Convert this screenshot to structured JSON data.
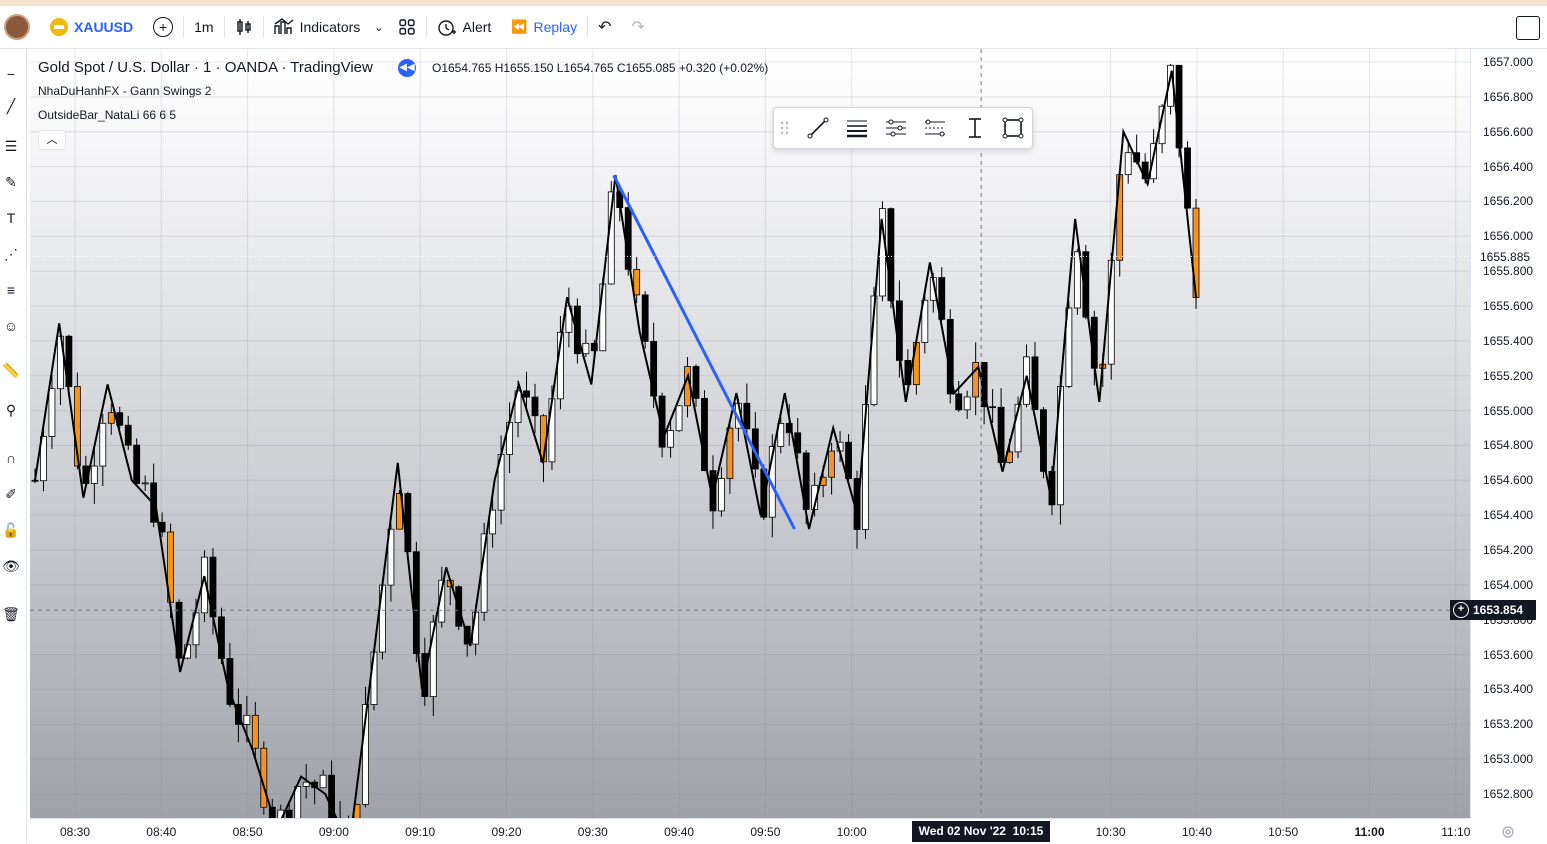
{
  "toolbar": {
    "symbol": "XAUUSD",
    "interval": "1m",
    "indicators_label": "Indicators",
    "alert_label": "Alert",
    "replay_label": "Replay"
  },
  "legend": {
    "title": "Gold Spot / U.S. Dollar · 1 · OANDA · TradingView",
    "ohlc": "O1654.765 H1655.150 L1654.765 C1655.085 +0.320 (+0.02%)",
    "studies": [
      "NhaDuHanhFX - Gann Swings 2",
      "OutsideBar_NataLi 66 6 5"
    ]
  },
  "price_axis": {
    "ticks": [
      "1657.000",
      "1656.800",
      "1656.600",
      "1656.400",
      "1656.200",
      "1656.000",
      "1655.800",
      "1655.600",
      "1655.400",
      "1655.200",
      "1655.000",
      "1654.800",
      "1654.600",
      "1654.400",
      "1654.200",
      "1654.000",
      "1653.800",
      "1653.600",
      "1653.400",
      "1653.200",
      "1653.000",
      "1652.800"
    ],
    "last_price": "1655.885",
    "crosshair_price": "1653.854"
  },
  "time_axis": {
    "ticks": [
      "08:30",
      "08:40",
      "08:50",
      "09:00",
      "09:10",
      "09:20",
      "09:30",
      "09:40",
      "09:50",
      "10:00",
      "10:30",
      "10:40",
      "10:50",
      "11:00",
      "11:10"
    ],
    "crosshair_date": "Wed 02 Nov '22",
    "crosshair_time": "10:15"
  },
  "colors": {
    "accent": "#2962ff",
    "bull_candle": "#ffffff",
    "bear_candle": "#000000",
    "outside_bar": "#f7931a",
    "trendline": "#2962ff",
    "swing_line": "#000000"
  },
  "chart_data": {
    "type": "candlestick",
    "symbol": "XAUUSD",
    "interval": "1m",
    "ylim": [
      1652.7,
      1657.05
    ],
    "trendline": {
      "from": [
        "09:33",
        1656.35
      ],
      "to": [
        "09:55",
        1654.32
      ]
    },
    "swing_points": [
      1654.6,
      1655.5,
      1654.5,
      1655.15,
      1654.6,
      1654.45,
      1653.5,
      1654.05,
      1653.4,
      1653.05,
      1652.6,
      1652.9,
      1652.8,
      1652.5,
      1653.6,
      1654.7,
      1653.4,
      1654.1,
      1653.65,
      1654.6,
      1655.15,
      1654.7,
      1655.65,
      1655.15,
      1656.35,
      1655.45,
      1654.85,
      1655.2,
      1654.5,
      1655.1,
      1654.4,
      1655.1,
      1654.32,
      1654.9,
      1654.4,
      1656.1,
      1655.05,
      1655.85,
      1655.1,
      1655.25,
      1654.65,
      1655.2,
      1654.5,
      1656.1,
      1655.05,
      1656.6,
      1656.3,
      1656.95,
      1655.65
    ],
    "outside_bars_color": "#f7931a"
  }
}
